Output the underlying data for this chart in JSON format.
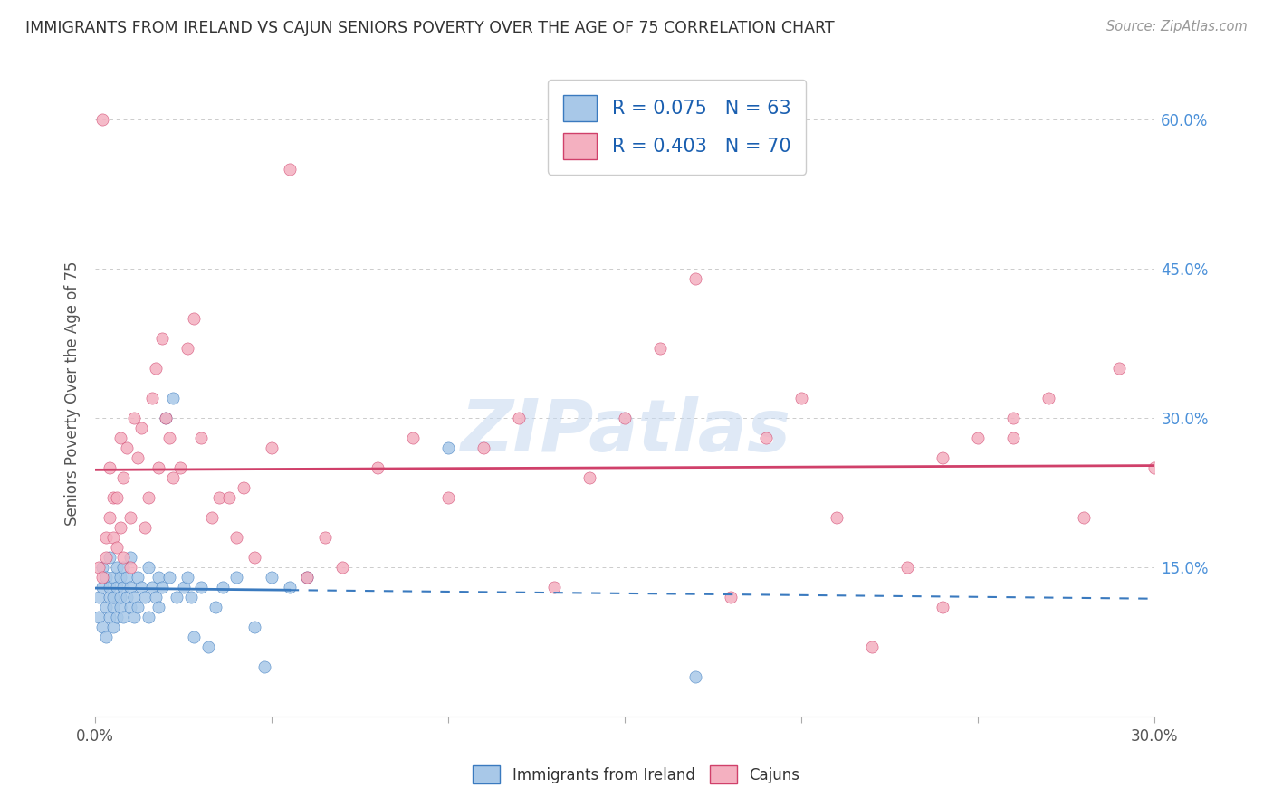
{
  "title": "IMMIGRANTS FROM IRELAND VS CAJUN SENIORS POVERTY OVER THE AGE OF 75 CORRELATION CHART",
  "source": "Source: ZipAtlas.com",
  "ylabel": "Seniors Poverty Over the Age of 75",
  "xlabel_ireland": "Immigrants from Ireland",
  "xlabel_cajun": "Cajuns",
  "xmin": 0.0,
  "xmax": 0.3,
  "ymin": 0.0,
  "ymax": 0.65,
  "ytick_vals": [
    0.15,
    0.3,
    0.45,
    0.6
  ],
  "ytick_labels": [
    "15.0%",
    "30.0%",
    "45.0%",
    "60.0%"
  ],
  "ireland_R": 0.075,
  "ireland_N": 63,
  "cajun_R": 0.403,
  "cajun_N": 70,
  "ireland_color": "#a8c8e8",
  "cajun_color": "#f4b0c0",
  "ireland_line_color": "#3a7abf",
  "cajun_line_color": "#d0406a",
  "watermark": "ZIPatlas",
  "ireland_scatter_x": [
    0.001,
    0.001,
    0.002,
    0.002,
    0.002,
    0.003,
    0.003,
    0.003,
    0.004,
    0.004,
    0.004,
    0.004,
    0.005,
    0.005,
    0.005,
    0.005,
    0.006,
    0.006,
    0.006,
    0.007,
    0.007,
    0.007,
    0.008,
    0.008,
    0.008,
    0.009,
    0.009,
    0.01,
    0.01,
    0.01,
    0.011,
    0.011,
    0.012,
    0.012,
    0.013,
    0.014,
    0.015,
    0.015,
    0.016,
    0.017,
    0.018,
    0.018,
    0.019,
    0.02,
    0.021,
    0.022,
    0.023,
    0.025,
    0.026,
    0.027,
    0.028,
    0.03,
    0.032,
    0.034,
    0.036,
    0.04,
    0.045,
    0.048,
    0.05,
    0.055,
    0.06,
    0.1,
    0.17
  ],
  "ireland_scatter_y": [
    0.12,
    0.1,
    0.13,
    0.09,
    0.15,
    0.11,
    0.14,
    0.08,
    0.12,
    0.1,
    0.13,
    0.16,
    0.11,
    0.14,
    0.09,
    0.12,
    0.15,
    0.1,
    0.13,
    0.11,
    0.14,
    0.12,
    0.1,
    0.13,
    0.15,
    0.12,
    0.14,
    0.11,
    0.13,
    0.16,
    0.12,
    0.1,
    0.14,
    0.11,
    0.13,
    0.12,
    0.15,
    0.1,
    0.13,
    0.12,
    0.14,
    0.11,
    0.13,
    0.3,
    0.14,
    0.32,
    0.12,
    0.13,
    0.14,
    0.12,
    0.08,
    0.13,
    0.07,
    0.11,
    0.13,
    0.14,
    0.09,
    0.05,
    0.14,
    0.13,
    0.14,
    0.27,
    0.04
  ],
  "cajun_scatter_x": [
    0.001,
    0.002,
    0.002,
    0.003,
    0.003,
    0.004,
    0.004,
    0.005,
    0.005,
    0.006,
    0.006,
    0.007,
    0.007,
    0.008,
    0.008,
    0.009,
    0.01,
    0.01,
    0.011,
    0.012,
    0.013,
    0.014,
    0.015,
    0.016,
    0.017,
    0.018,
    0.019,
    0.02,
    0.021,
    0.022,
    0.024,
    0.026,
    0.028,
    0.03,
    0.033,
    0.035,
    0.038,
    0.04,
    0.042,
    0.045,
    0.05,
    0.055,
    0.06,
    0.065,
    0.07,
    0.08,
    0.09,
    0.1,
    0.11,
    0.12,
    0.13,
    0.14,
    0.15,
    0.16,
    0.17,
    0.18,
    0.19,
    0.2,
    0.21,
    0.22,
    0.23,
    0.24,
    0.25,
    0.26,
    0.27,
    0.28,
    0.29,
    0.3,
    0.24,
    0.26
  ],
  "cajun_scatter_y": [
    0.15,
    0.6,
    0.14,
    0.18,
    0.16,
    0.25,
    0.2,
    0.22,
    0.18,
    0.17,
    0.22,
    0.19,
    0.28,
    0.16,
    0.24,
    0.27,
    0.15,
    0.2,
    0.3,
    0.26,
    0.29,
    0.19,
    0.22,
    0.32,
    0.35,
    0.25,
    0.38,
    0.3,
    0.28,
    0.24,
    0.25,
    0.37,
    0.4,
    0.28,
    0.2,
    0.22,
    0.22,
    0.18,
    0.23,
    0.16,
    0.27,
    0.55,
    0.14,
    0.18,
    0.15,
    0.25,
    0.28,
    0.22,
    0.27,
    0.3,
    0.13,
    0.24,
    0.3,
    0.37,
    0.44,
    0.12,
    0.28,
    0.32,
    0.2,
    0.07,
    0.15,
    0.11,
    0.28,
    0.3,
    0.32,
    0.2,
    0.35,
    0.25,
    0.26,
    0.28
  ]
}
